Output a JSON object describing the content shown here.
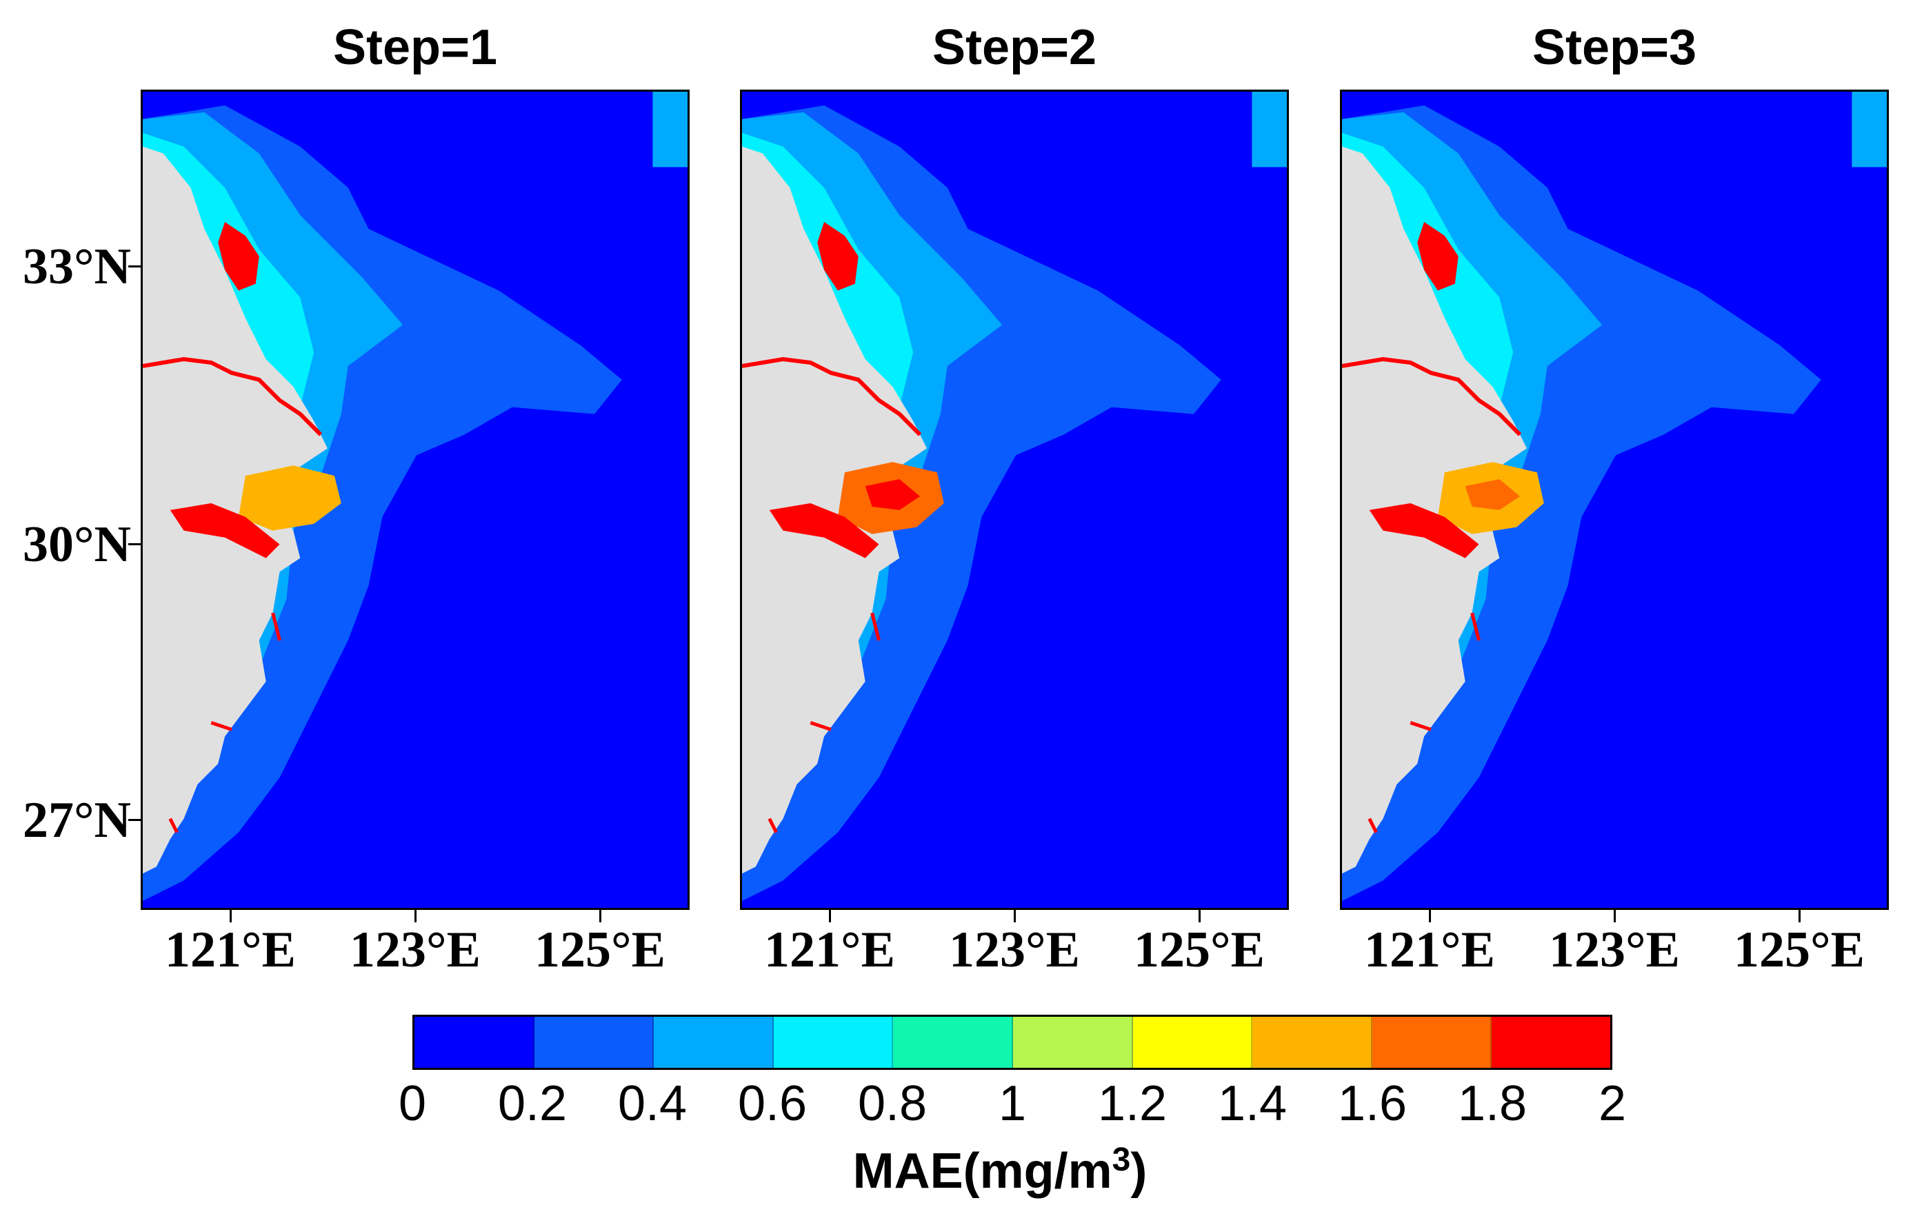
{
  "panels": [
    {
      "title": "Step=1"
    },
    {
      "title": "Step=2"
    },
    {
      "title": "Step=3"
    }
  ],
  "lon_ticks": [
    "121°E",
    "123°E",
    "125°E"
  ],
  "lat_ticks": [
    "33°N",
    "30°N",
    "27°N"
  ],
  "colorbar": {
    "title_main": "MAE(mg/m",
    "title_sup": "3",
    "title_end": ")",
    "tick_labels": [
      "0",
      "0.2",
      "0.4",
      "0.6",
      "0.8",
      "1",
      "1.2",
      "1.4",
      "1.6",
      "1.8",
      "2"
    ],
    "colors": [
      "#0000ff",
      "#0a5cff",
      "#00aaff",
      "#00f0ff",
      "#10f5b0",
      "#b5f54e",
      "#ffff00",
      "#ffb300",
      "#ff6a00",
      "#ff0000"
    ]
  },
  "colors": {
    "land": "#e0e0e0",
    "sea_low": "#0000ff"
  }
}
